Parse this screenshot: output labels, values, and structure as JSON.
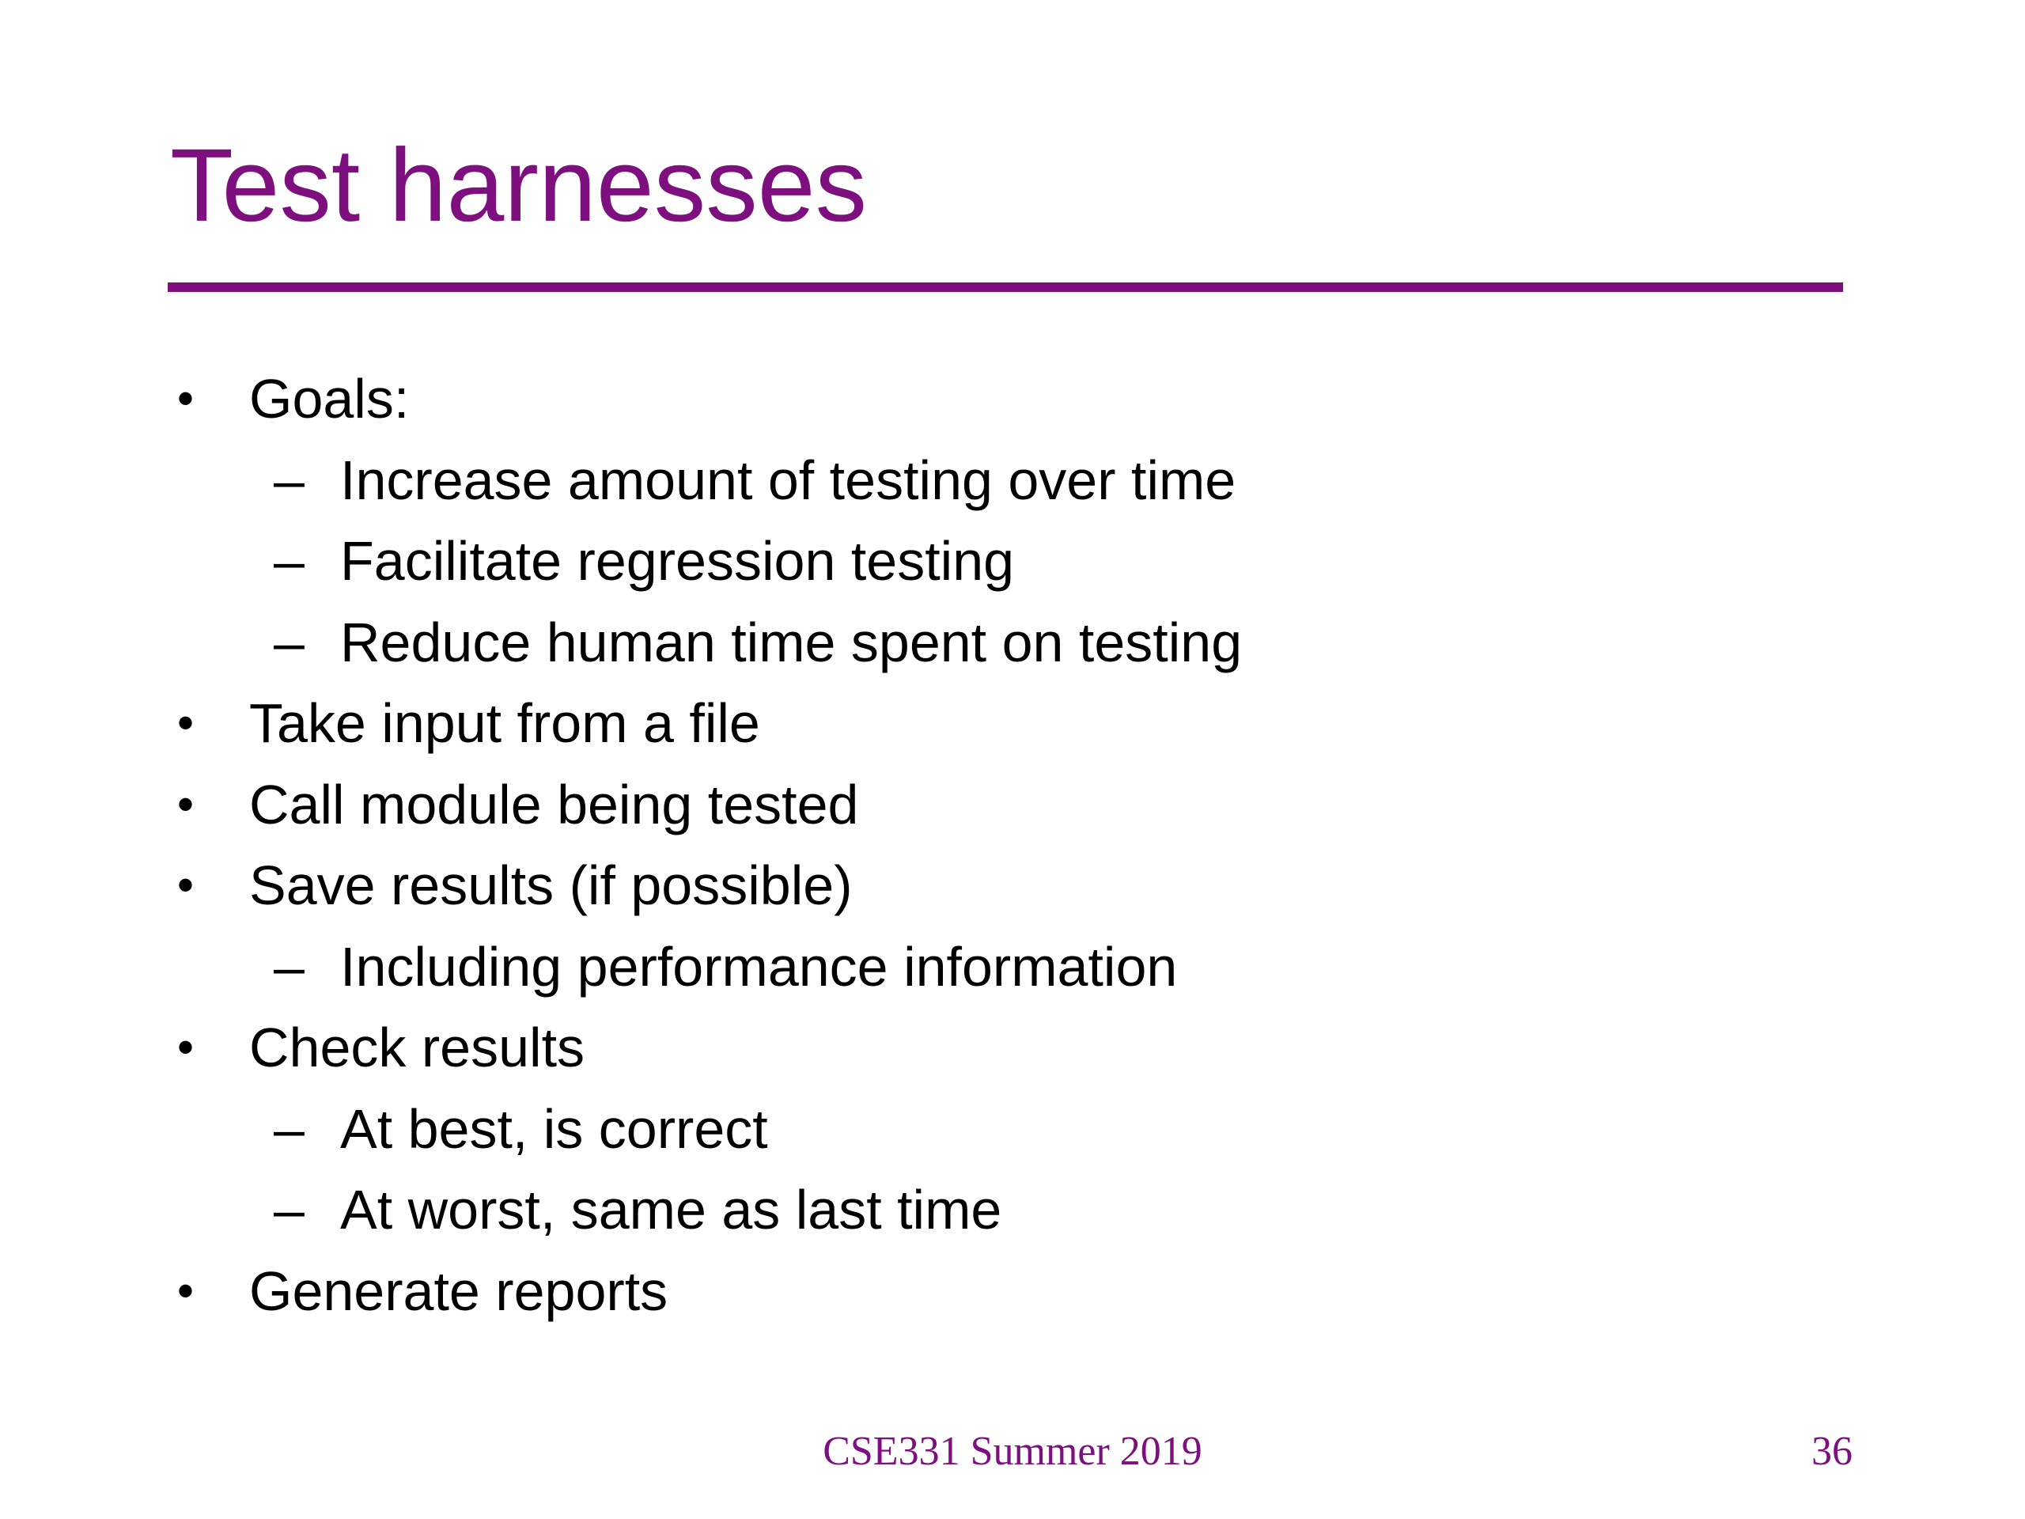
{
  "slide": {
    "title": "Test harnesses",
    "accent_color": "#7D0F7E",
    "text_color": "#000000",
    "background_color": "#FFFFFF"
  },
  "markers": {
    "bullet": "•",
    "dash": "–"
  },
  "content": {
    "items": [
      {
        "level": 1,
        "text": "Goals:"
      },
      {
        "level": 2,
        "text": "Increase amount of testing over time"
      },
      {
        "level": 2,
        "text": "Facilitate regression testing"
      },
      {
        "level": 2,
        "text": "Reduce human time spent on testing"
      },
      {
        "level": 1,
        "text": "Take input from a file"
      },
      {
        "level": 1,
        "text": "Call module being tested"
      },
      {
        "level": 1,
        "text": "Save results (if possible)"
      },
      {
        "level": 2,
        "text": "Including performance information"
      },
      {
        "level": 1,
        "text": "Check results"
      },
      {
        "level": 2,
        "text": "At best, is correct"
      },
      {
        "level": 2,
        "text": "At worst, same as last time"
      },
      {
        "level": 1,
        "text": "Generate reports"
      }
    ]
  },
  "footer": {
    "course_label": "CSE331 Summer 2019",
    "page_number": "36"
  }
}
